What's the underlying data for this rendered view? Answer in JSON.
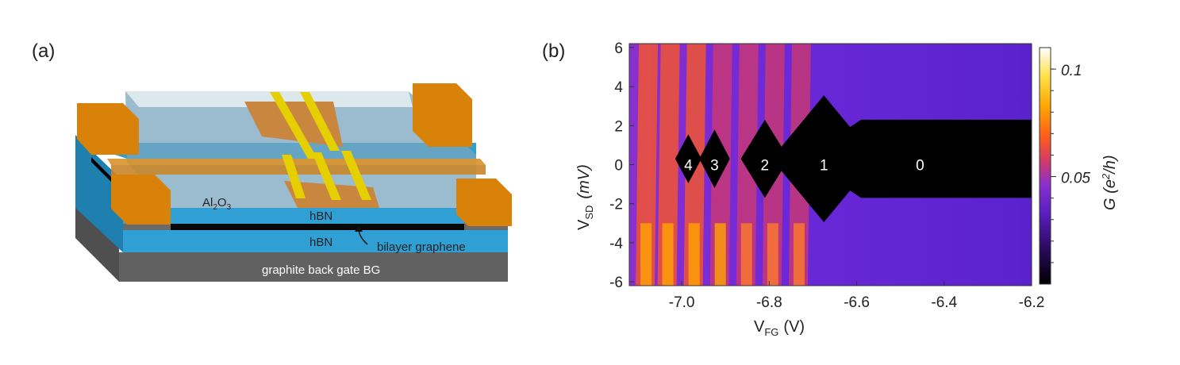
{
  "panel_a": {
    "label": "(a)",
    "layers": {
      "al2o3": "Al",
      "al2o3_sub1": "2",
      "al2o3_mid": "O",
      "al2o3_sub2": "3",
      "hbn_top": "hBN",
      "hbn_bottom": "hBN",
      "graphene": "bilayer graphene",
      "gate": "graphite back gate BG"
    },
    "colors": {
      "gate": "#616161",
      "hbn": "#2f9fd4",
      "contact": "#d9820a",
      "finger_gate": "#e6cf00",
      "al2o3": "#8fb4c6"
    }
  },
  "panel_b": {
    "label": "(b)",
    "ylabel_main": "V",
    "ylabel_sub": "SD",
    "ylabel_unit": "(mV)",
    "xlabel_main": "V",
    "xlabel_sub": "FG",
    "xlabel_unit": "(V)",
    "colorbar_label_main": "G (e",
    "colorbar_label_sup": "2",
    "colorbar_label_end": "/h)",
    "colorbar_ticks": [
      "0.1",
      "0.05"
    ],
    "colorbar_values": [
      0.1,
      0.05
    ],
    "colorbar_range": [
      0,
      0.11
    ],
    "diamond_labels": [
      {
        "text": "4",
        "x": -6.985
      },
      {
        "text": "3",
        "x": -6.925
      },
      {
        "text": "2",
        "x": -6.81
      },
      {
        "text": "1",
        "x": -6.675
      },
      {
        "text": "0",
        "x": -6.455
      }
    ]
  },
  "chart_data": {
    "type": "heatmap",
    "xlabel": "V_FG (V)",
    "ylabel": "V_SD (mV)",
    "zlabel": "G (e^2/h)",
    "xlim": [
      -7.12,
      -6.2
    ],
    "ylim": [
      -6.2,
      6.2
    ],
    "zlim": [
      0,
      0.11
    ],
    "x_ticks": [
      -7.0,
      -6.8,
      -6.6,
      -6.4,
      -6.2
    ],
    "x_tick_labels": [
      "-7.0",
      "-6.8",
      "-6.6",
      "-6.4",
      "-6.2"
    ],
    "y_ticks": [
      6,
      4,
      2,
      0,
      -2,
      -4,
      -6
    ],
    "y_tick_labels": [
      "6",
      "4",
      "2",
      "0",
      "-2",
      "-4",
      "-6"
    ],
    "colormap": [
      "#000000",
      "#2a0a5e",
      "#5a1fc0",
      "#8a2fd0",
      "#d23a6a",
      "#ff5a1e",
      "#ffa500",
      "#ffe14a",
      "#ffffff"
    ],
    "coulomb_diamonds": [
      {
        "label": "4",
        "center": -6.985,
        "half_width": 0.03,
        "height_mV": 2.5
      },
      {
        "label": "3",
        "center": -6.925,
        "half_width": 0.035,
        "height_mV": 3.0
      },
      {
        "label": "2",
        "center": -6.81,
        "half_width": 0.055,
        "height_mV": 4.0
      },
      {
        "label": "1",
        "center": -6.675,
        "half_width": 0.12,
        "height_mV": 6.5
      },
      {
        "label": "0",
        "center": -6.455,
        "half_width": 0.27,
        "height_mV": 4.0
      }
    ]
  }
}
